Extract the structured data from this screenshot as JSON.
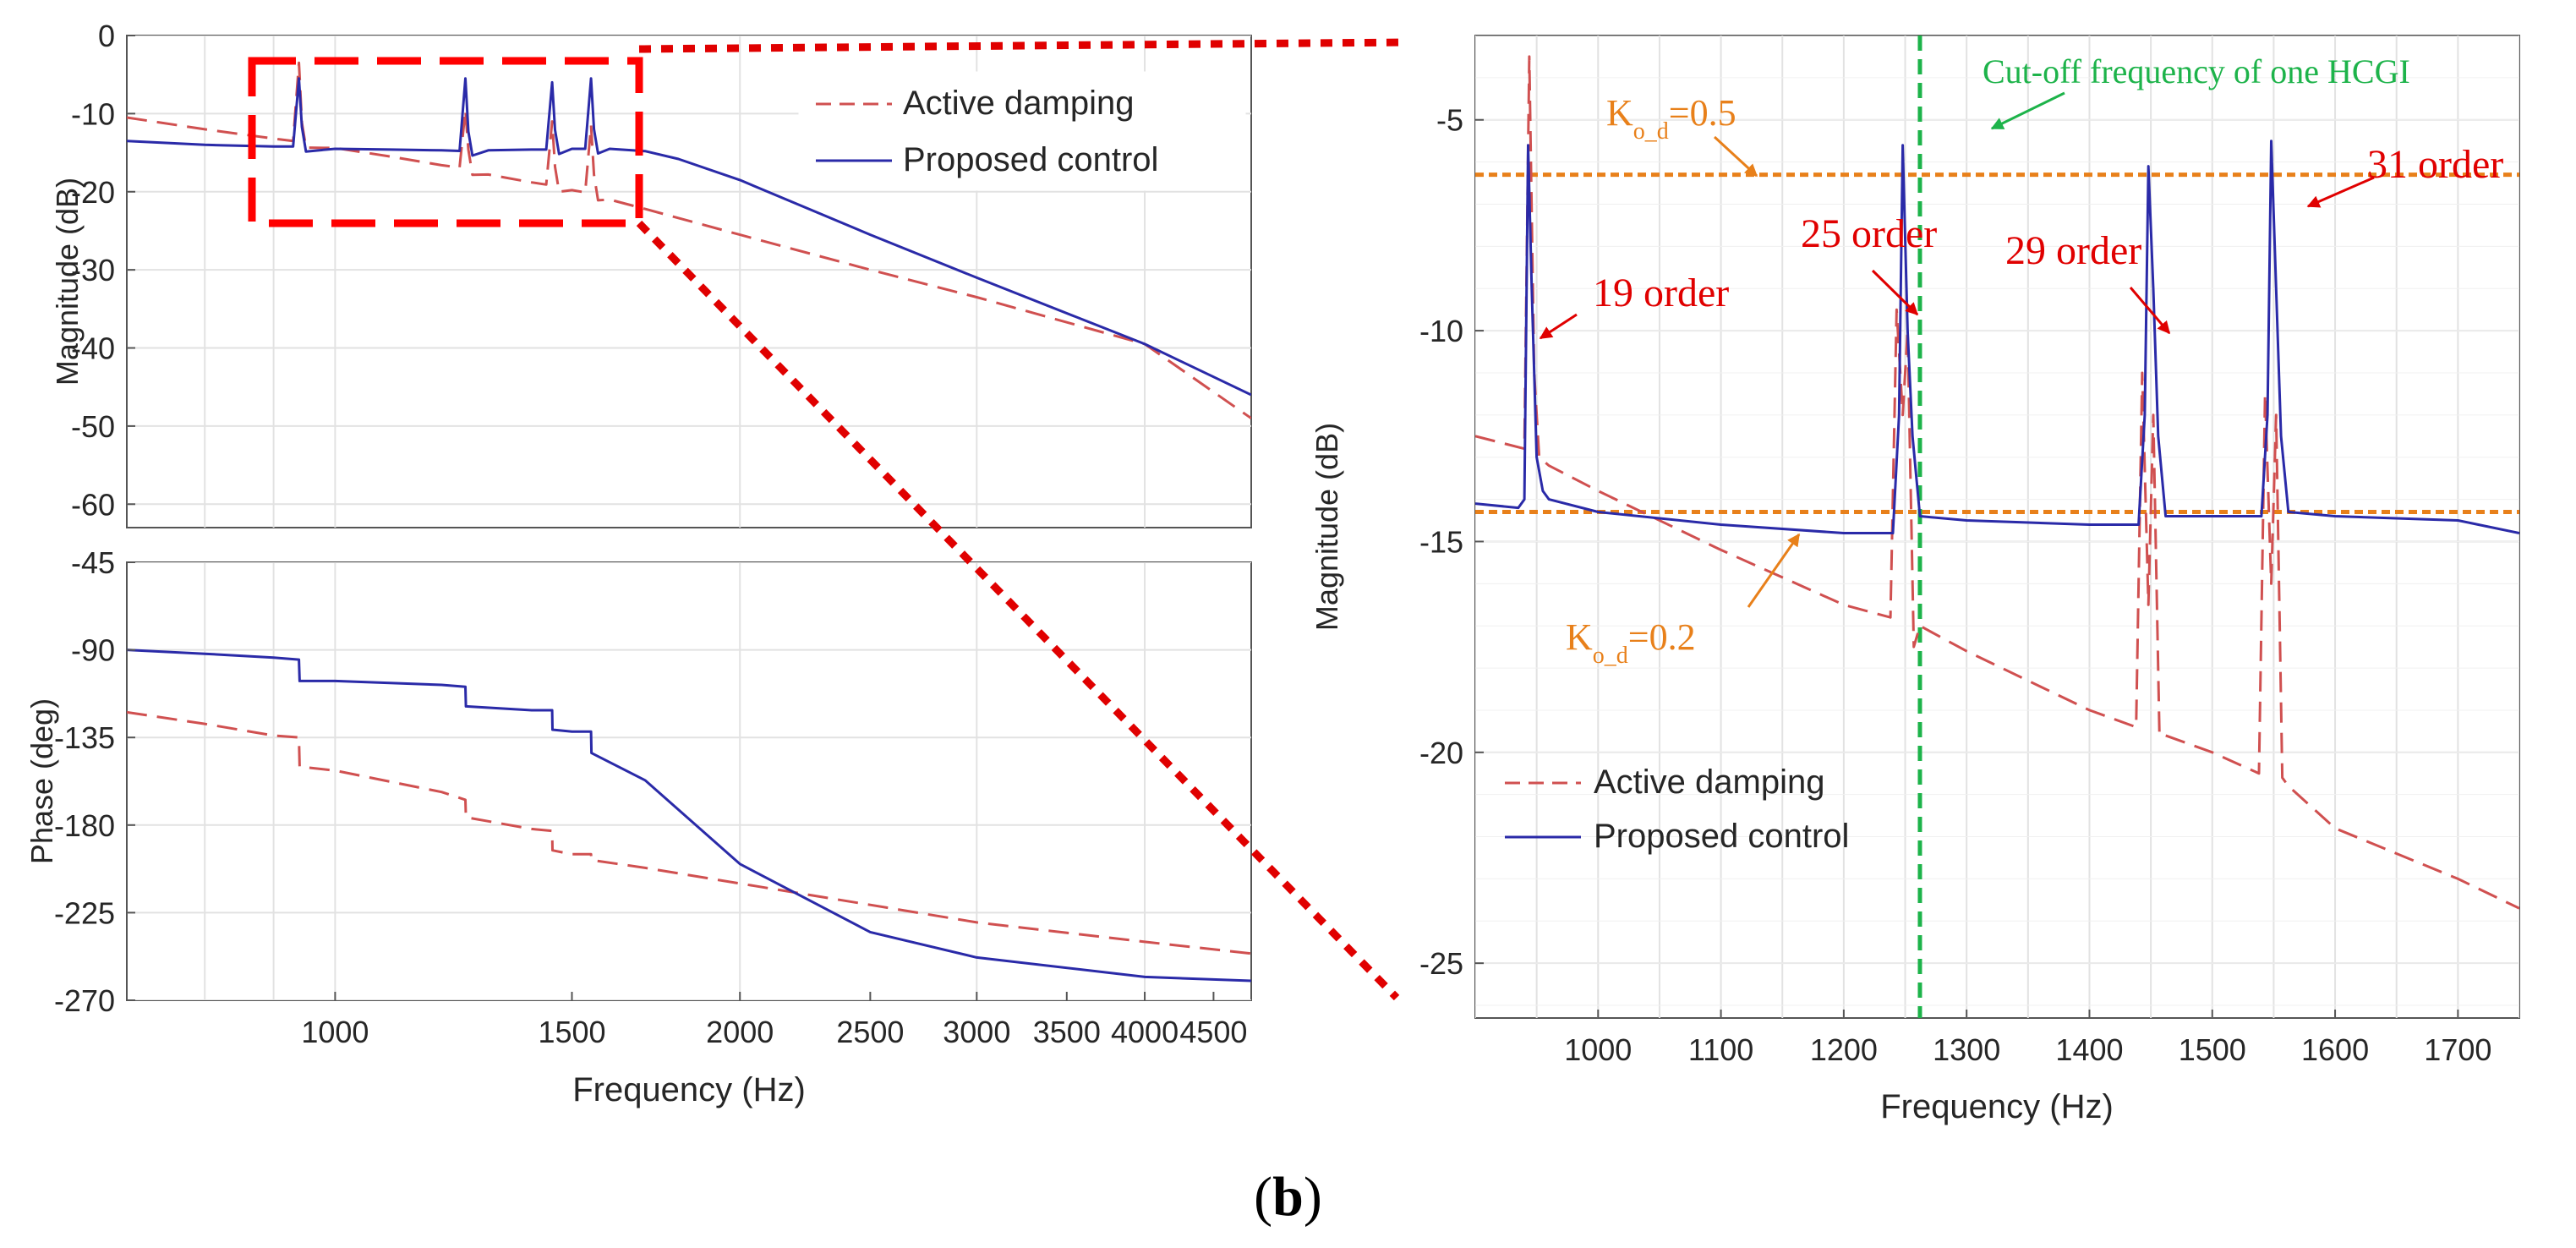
{
  "caption": {
    "prefix": "(",
    "letter": "b",
    "suffix": ")"
  },
  "colors": {
    "active": "#d05050",
    "proposed": "#2a2aa8",
    "grid": "#e2e2e2",
    "zoom_box": "#ff0000",
    "dotted_leader": "#e00000",
    "threshold": "#e8801a",
    "cutoff": "#1db34a",
    "order_label": "#e00000"
  },
  "chart_data": [
    {
      "id": "magnitude_left",
      "type": "line",
      "xscale": "log",
      "xlim": [
        700,
        4800
      ],
      "ylim": [
        -63,
        0
      ],
      "ylabel": "Magnitude (dB)",
      "xlabel": "",
      "yticks": [
        0,
        -10,
        -20,
        -30,
        -40,
        -50,
        -60
      ],
      "grid": true,
      "legend": {
        "position": "top-right",
        "entries": [
          "Active damping",
          "Proposed control"
        ]
      },
      "series": [
        {
          "name": "Active damping",
          "style": "dashed",
          "x": [
            700,
            800,
            900,
            940,
            1000,
            1100,
            1200,
            1250,
            1300,
            1400,
            1450,
            1500,
            1550,
            1600,
            1700,
            2000,
            2500,
            3000,
            4000,
            4800
          ],
          "y": [
            -10.5,
            -12.0,
            -13.2,
            -13.6,
            -14.4,
            -15.5,
            -16.6,
            -17.0,
            -17.8,
            -18.8,
            -19.2,
            -19.8,
            -20.2,
            -21.0,
            -22.2,
            -25.5,
            -30.0,
            -33.5,
            -39.5,
            -49.0
          ],
          "resonances": [
            {
              "x": 940,
              "peak": -3.5
            },
            {
              "x": 1250,
              "peak": -9.5
            },
            {
              "x": 1450,
              "peak": -11
            },
            {
              "x": 1550,
              "peak": -11.5
            }
          ]
        },
        {
          "name": "Proposed control",
          "x": [
            700,
            800,
            900,
            940,
            1000,
            1100,
            1200,
            1250,
            1300,
            1400,
            1450,
            1500,
            1550,
            1600,
            1700,
            1800,
            2000,
            2500,
            3000,
            4000,
            4800
          ],
          "y": [
            -13.5,
            -14.0,
            -14.2,
            -14.2,
            -14.5,
            -14.6,
            -14.7,
            -14.8,
            -14.7,
            -14.6,
            -14.6,
            -14.5,
            -14.5,
            -14.5,
            -14.8,
            -15.8,
            -18.5,
            -25.5,
            -31.0,
            -39.5,
            -46.0
          ],
          "resonances": [
            {
              "x": 940,
              "peak": -5.5
            },
            {
              "x": 1250,
              "peak": -5.5
            },
            {
              "x": 1450,
              "peak": -6
            },
            {
              "x": 1550,
              "peak": -5.5
            }
          ]
        }
      ]
    },
    {
      "id": "phase_left",
      "type": "line",
      "xscale": "log",
      "xlim": [
        700,
        4800
      ],
      "ylim": [
        -270,
        -45
      ],
      "ylabel": "Phase (deg)",
      "xlabel": "Frequency  (Hz)",
      "yticks": [
        -45,
        -90,
        -135,
        -180,
        -225,
        -270
      ],
      "xticks": [
        1000,
        1500,
        2000,
        2500,
        3000,
        3500,
        4000,
        4500
      ],
      "grid": true,
      "series": [
        {
          "name": "Active damping",
          "style": "dashed",
          "x": [
            700,
            800,
            900,
            940,
            941,
            1000,
            1200,
            1250,
            1251,
            1400,
            1450,
            1451,
            1500,
            1550,
            1551,
            1700,
            2000,
            2500,
            3000,
            4000,
            4800
          ],
          "y": [
            -122,
            -128,
            -134,
            -135,
            -150,
            -152,
            -163,
            -167,
            -176,
            -182,
            -183,
            -193,
            -195,
            -195,
            -198,
            -202,
            -210,
            -221,
            -230,
            -240,
            -246
          ]
        },
        {
          "name": "Proposed control",
          "x": [
            700,
            800,
            900,
            940,
            941,
            1000,
            1200,
            1250,
            1251,
            1400,
            1450,
            1451,
            1500,
            1550,
            1551,
            1700,
            2000,
            2500,
            3000,
            4000,
            4800
          ],
          "y": [
            -90,
            -92,
            -94,
            -95,
            -106,
            -106,
            -108,
            -109,
            -119,
            -121,
            -121,
            -131,
            -132,
            -132,
            -143,
            -157,
            -200,
            -235,
            -248,
            -258,
            -260
          ]
        }
      ]
    },
    {
      "id": "magnitude_zoom",
      "type": "line",
      "xscale": "linear",
      "xlim": [
        900,
        1750
      ],
      "ylim": [
        -26.3,
        -3
      ],
      "ylabel": "Magnitude (dB)",
      "xlabel": "Frequency  (Hz)",
      "yticks": [
        -5,
        -10,
        -15,
        -20,
        -25
      ],
      "xticks": [
        1000,
        1100,
        1200,
        1300,
        1400,
        1500,
        1600,
        1700
      ],
      "grid": true,
      "legend": {
        "position": "bottom-left",
        "entries": [
          "Active damping",
          "Proposed control"
        ]
      },
      "series": [
        {
          "name": "Active damping",
          "style": "dashed",
          "x": [
            900,
            940,
            944,
            948,
            952,
            960,
            1000,
            1100,
            1200,
            1238,
            1243,
            1248,
            1252,
            1257,
            1262,
            1300,
            1400,
            1438,
            1443,
            1448,
            1452,
            1457,
            1462,
            1500,
            1538,
            1543,
            1548,
            1552,
            1557,
            1562,
            1600,
            1700,
            1750
          ],
          "y": [
            -12.5,
            -12.8,
            -3.5,
            -11.0,
            -13.0,
            -13.2,
            -13.8,
            -15.2,
            -16.5,
            -16.8,
            -9.5,
            -12.0,
            -10.0,
            -17.5,
            -17.0,
            -17.6,
            -19.0,
            -19.4,
            -11.0,
            -16.5,
            -12.0,
            -19.6,
            -19.6,
            -20.0,
            -20.5,
            -11.5,
            -16.0,
            -12.0,
            -20.6,
            -20.8,
            -21.8,
            -23.0,
            -23.7
          ]
        },
        {
          "name": "Proposed control",
          "x": [
            900,
            935,
            940,
            943,
            946,
            950,
            955,
            960,
            1000,
            1100,
            1200,
            1240,
            1245,
            1248,
            1252,
            1256,
            1262,
            1300,
            1400,
            1440,
            1445,
            1448,
            1452,
            1456,
            1462,
            1500,
            1540,
            1545,
            1548,
            1552,
            1556,
            1562,
            1600,
            1700,
            1750
          ],
          "y": [
            -14.1,
            -14.2,
            -14.0,
            -5.6,
            -9.0,
            -13.0,
            -13.8,
            -14.0,
            -14.3,
            -14.6,
            -14.8,
            -14.8,
            -12.0,
            -5.6,
            -10.0,
            -12.5,
            -14.4,
            -14.5,
            -14.6,
            -14.6,
            -12.0,
            -6.1,
            -9.0,
            -12.5,
            -14.4,
            -14.4,
            -14.4,
            -12.0,
            -5.5,
            -9.0,
            -12.5,
            -14.3,
            -14.4,
            -14.5,
            -14.8
          ]
        }
      ],
      "annotations": {
        "thresholds": [
          {
            "y": -6.3,
            "label_main": "K",
            "label_sub": "o_d",
            "label_tail": "=0.5"
          },
          {
            "y": -14.3,
            "label_main": "K",
            "label_sub": "o_d",
            "label_tail": "=0.2"
          }
        ],
        "cutoff": {
          "x": 1262,
          "label": "Cut-off frequency of one HCGI"
        },
        "orders": [
          "19 order",
          "25 order",
          "29 order",
          "31 order"
        ]
      }
    }
  ]
}
